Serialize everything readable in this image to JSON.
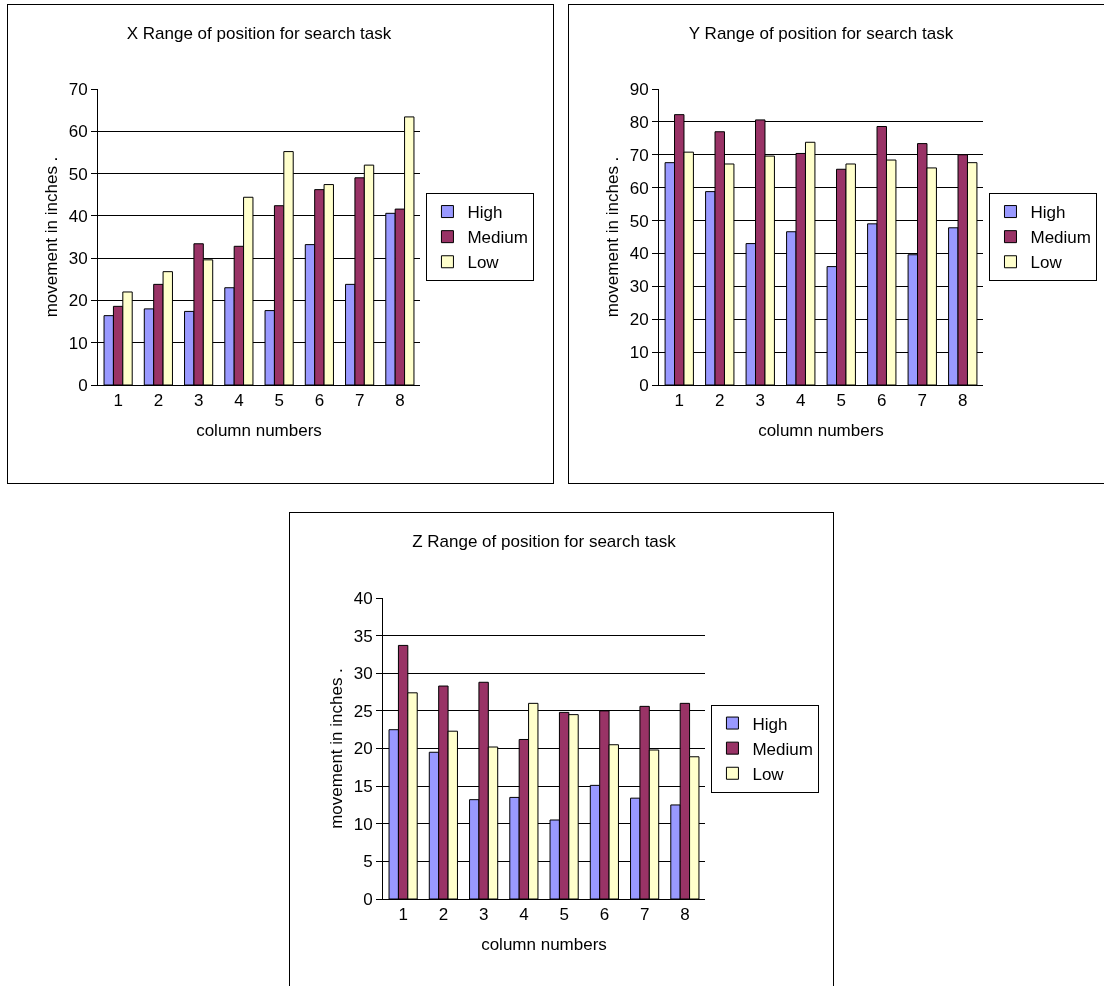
{
  "chart_data": [
    {
      "type": "bar",
      "title": "X Range of position for search task",
      "xlabel": "column numbers",
      "ylabel": "movement in inches .",
      "categories": [
        "1",
        "2",
        "3",
        "4",
        "5",
        "6",
        "7",
        "8"
      ],
      "ylim": [
        0,
        70
      ],
      "yticks": [
        0,
        10,
        20,
        30,
        40,
        50,
        60,
        70
      ],
      "grid": "y",
      "legend": "right",
      "series": [
        {
          "name": "High",
          "color": "#9999ff",
          "values": [
            16.4,
            18,
            17.4,
            23,
            17.6,
            33.2,
            23.8,
            40.6
          ]
        },
        {
          "name": "Medium",
          "color": "#993366",
          "values": [
            18.6,
            23.8,
            33.4,
            32.8,
            42.4,
            46.2,
            49,
            41.6
          ]
        },
        {
          "name": "Low",
          "color": "#ffffcc",
          "values": [
            22,
            26.8,
            29.6,
            44.4,
            55.2,
            47.4,
            52,
            63.4
          ]
        }
      ]
    },
    {
      "type": "bar",
      "title": "Y Range of position for search task",
      "xlabel": "column numbers",
      "ylabel": "movement in inches .",
      "categories": [
        "1",
        "2",
        "3",
        "4",
        "5",
        "6",
        "7",
        "8"
      ],
      "ylim": [
        0,
        90
      ],
      "yticks": [
        0,
        10,
        20,
        30,
        40,
        50,
        60,
        70,
        80,
        90
      ],
      "grid": "y",
      "legend": "right",
      "series": [
        {
          "name": "High",
          "color": "#9999ff",
          "values": [
            67.6,
            58.8,
            43,
            46.6,
            36,
            49,
            39.6,
            47.8
          ]
        },
        {
          "name": "Medium",
          "color": "#993366",
          "values": [
            82.2,
            77,
            80.6,
            70.4,
            65.6,
            78.6,
            73.4,
            70
          ]
        },
        {
          "name": "Low",
          "color": "#ffffcc",
          "values": [
            70.8,
            67.2,
            69.6,
            73.8,
            67.2,
            68.4,
            66,
            67.6
          ]
        }
      ]
    },
    {
      "type": "bar",
      "title": "Z Range of position for search task",
      "xlabel": "column numbers",
      "ylabel": "movement in inches .",
      "categories": [
        "1",
        "2",
        "3",
        "4",
        "5",
        "6",
        "7",
        "8"
      ],
      "ylim": [
        0,
        40
      ],
      "yticks": [
        0,
        5,
        10,
        15,
        20,
        25,
        30,
        35,
        40
      ],
      "grid": "y",
      "legend": "right",
      "series": [
        {
          "name": "High",
          "color": "#9999ff",
          "values": [
            22.5,
            19.5,
            13.2,
            13.5,
            10.5,
            15.1,
            13.4,
            12.5
          ]
        },
        {
          "name": "Medium",
          "color": "#993366",
          "values": [
            33.7,
            28.3,
            28.8,
            21.2,
            24.8,
            25,
            25.6,
            26
          ]
        },
        {
          "name": "Low",
          "color": "#ffffcc",
          "values": [
            27.4,
            22.3,
            20.2,
            26,
            24.5,
            20.5,
            19.8,
            18.9
          ]
        }
      ]
    }
  ]
}
